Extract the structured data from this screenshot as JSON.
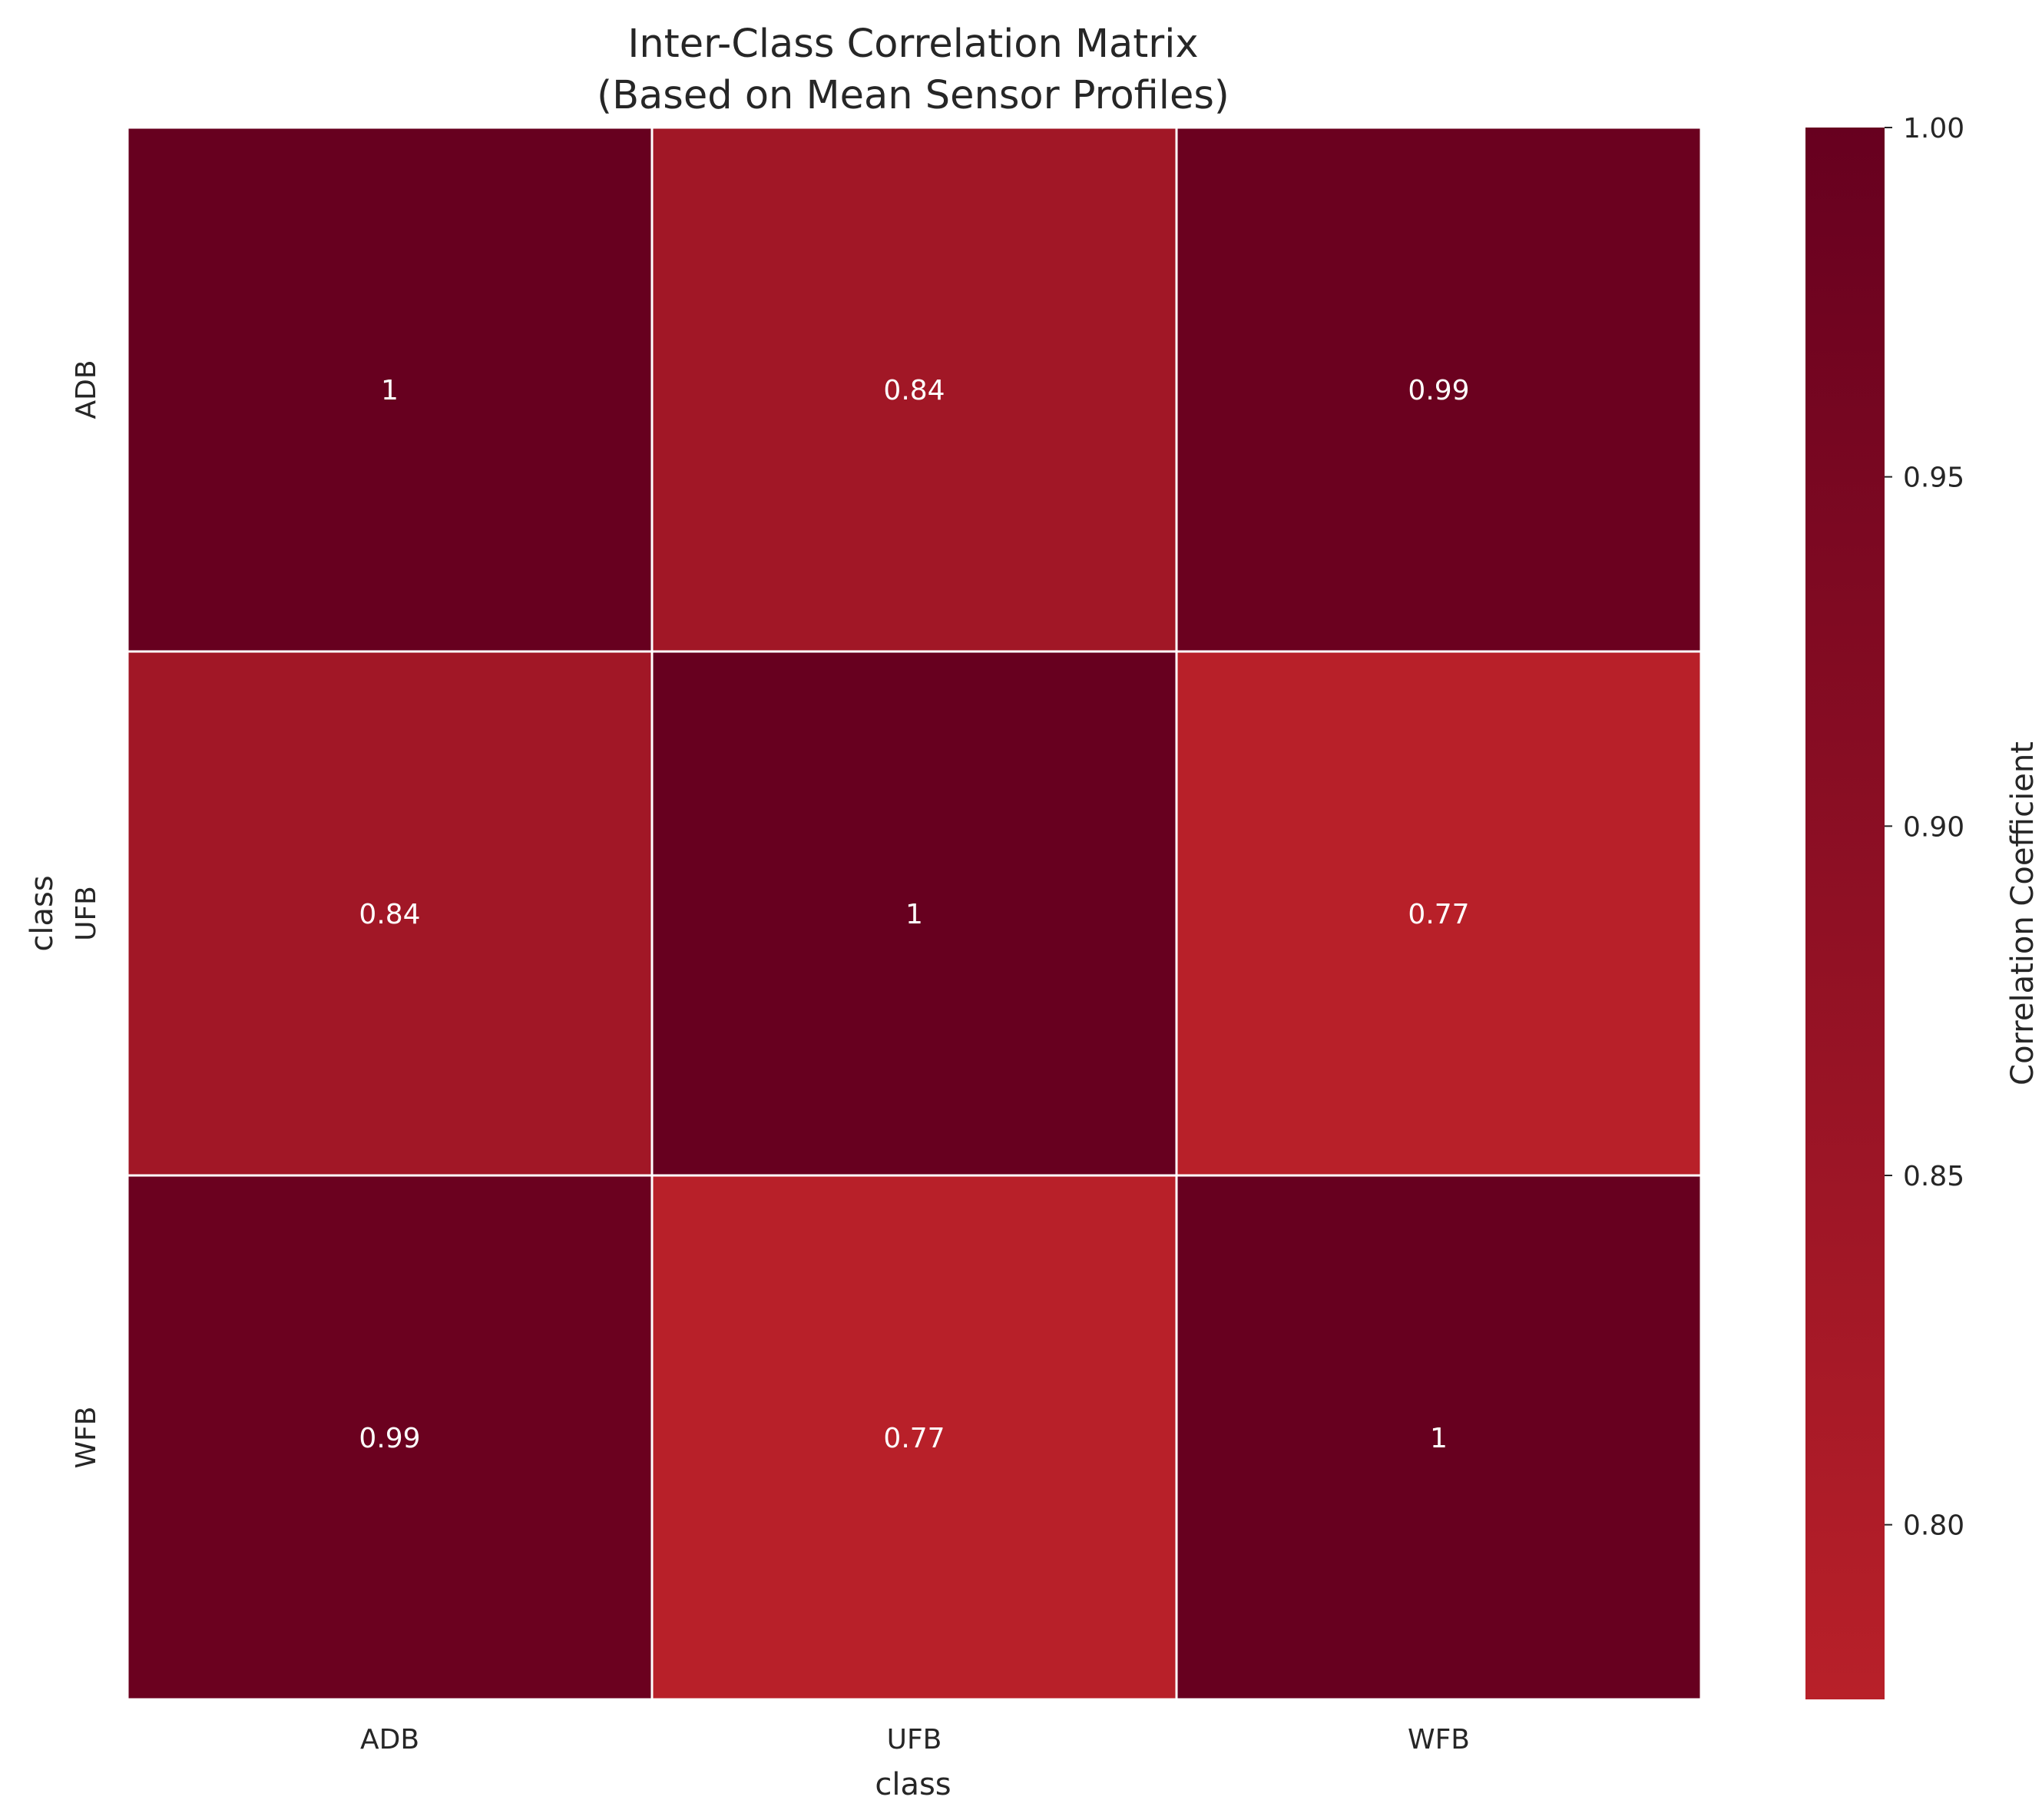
{
  "chart_data": {
    "type": "heatmap",
    "title": "Inter-Class Correlation Matrix",
    "subtitle": "(Based on Mean Sensor Profiles)",
    "xlabel": "class",
    "ylabel": "class",
    "x_categories": [
      "ADB",
      "UFB",
      "WFB"
    ],
    "y_categories": [
      "ADB",
      "UFB",
      "WFB"
    ],
    "values": [
      [
        1.0,
        0.84,
        0.99
      ],
      [
        0.84,
        1.0,
        0.77
      ],
      [
        0.99,
        0.77,
        1.0
      ]
    ],
    "cell_labels": [
      [
        "1",
        "0.84",
        "0.99"
      ],
      [
        "0.84",
        "1",
        "0.77"
      ],
      [
        "0.99",
        "0.77",
        "1"
      ]
    ],
    "colorbar": {
      "label": "Correlation Coefficient",
      "range": [
        0.775,
        1.0
      ],
      "ticks": [
        0.8,
        0.85,
        0.9,
        0.95,
        1.0
      ],
      "tick_labels": [
        "0.80",
        "0.85",
        "0.90",
        "0.95",
        "1.00"
      ],
      "colors": [
        "#b82029",
        "#67001f"
      ]
    },
    "grid": false,
    "legend": "colorbar-right"
  }
}
